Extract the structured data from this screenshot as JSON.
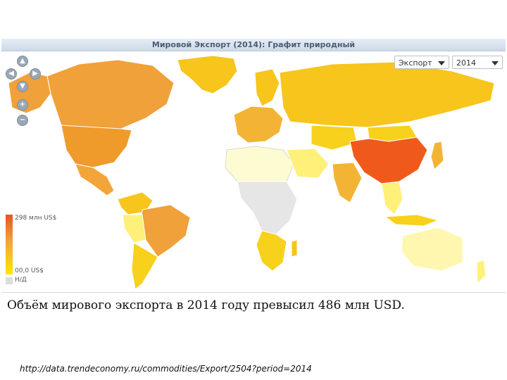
{
  "map": {
    "title": "Мировой Экспорт (2014): Графит природный",
    "metric_select": {
      "value": "Экспорт"
    },
    "year_select": {
      "value": "2014"
    },
    "legend": {
      "max_label": "298 млн US$",
      "min_label": "00,0 US$",
      "na_label": "Н/Д",
      "colors": {
        "max": "#e8531f",
        "mid": "#f3a53a",
        "min": "#ffe600",
        "na": "#dcdcdc"
      }
    },
    "nav_icons": [
      "pan-up-icon",
      "pan-left-icon",
      "pan-right-icon",
      "pan-down-icon",
      "zoom-in-icon",
      "zoom-out-icon"
    ]
  },
  "caption": "Объём мирового экспорта в 2014 году превысил 486 млн USD.",
  "source_url": "http://data.trendeconomy.ru/commodities/Export/2504?period=2014"
}
